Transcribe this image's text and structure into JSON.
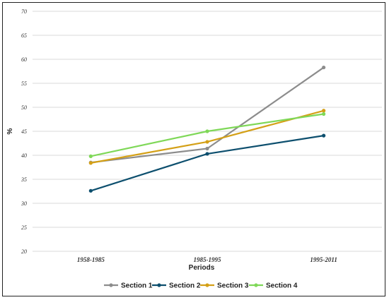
{
  "chart_data": {
    "type": "line",
    "categories": [
      "1958-1985",
      "1985-1995",
      "1995-2011"
    ],
    "xlabel": "Periods",
    "ylabel": "%",
    "ylim": [
      20,
      70
    ],
    "yticks": [
      "20",
      "25",
      "30",
      "35",
      "40",
      "45",
      "50",
      "55",
      "60",
      "65",
      "70"
    ],
    "grid": true,
    "legend_position": "bottom",
    "series": [
      {
        "name": "Section 1",
        "color": "#8c8c8c",
        "values": [
          38.5,
          41.4,
          58.3
        ]
      },
      {
        "name": "Section 2",
        "color": "#0d4f6e",
        "values": [
          32.6,
          40.3,
          44.1
        ]
      },
      {
        "name": "Section 3",
        "color": "#d4a017",
        "values": [
          38.4,
          42.8,
          49.3
        ]
      },
      {
        "name": "Section 4",
        "color": "#7fd858",
        "values": [
          39.8,
          45.0,
          48.6
        ]
      }
    ]
  }
}
